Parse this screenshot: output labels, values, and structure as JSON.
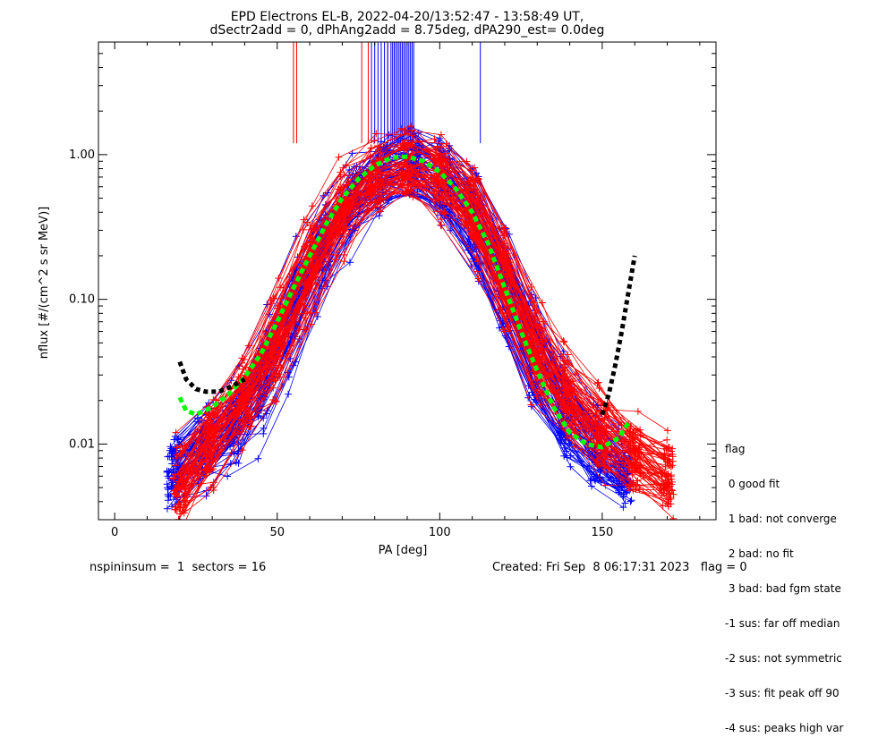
{
  "chart_data": {
    "type": "line",
    "title": "EPD Electrons EL-B, 2022-04-20/13:52:47 - 13:58:49 UT,",
    "subtitle": "dSectr2add = 0, dPhAng2add = 8.75deg, dPA290_est=   0.0deg",
    "xlabel": "PA [deg]",
    "ylabel": "nflux [#/(cm^2 s sr MeV)]",
    "xlim": [
      -5,
      185
    ],
    "ylim": [
      0.003,
      6
    ],
    "yscale": "log",
    "x_ticks": [
      "0",
      "50",
      "100",
      "150"
    ],
    "x_tick_values": [
      0,
      50,
      100,
      150
    ],
    "y_ticks": [
      "0.01",
      "0.10",
      "1.00"
    ],
    "y_tick_values": [
      0.01,
      0.1,
      1.0
    ],
    "grid": false,
    "series": [
      {
        "color": "#0000ff",
        "marker": "+",
        "style": "many thin lines",
        "x": [
          18,
          27,
          40,
          50,
          62,
          72,
          82,
          90,
          100,
          110,
          120,
          130,
          140,
          150,
          157
        ],
        "y": [
          0.006,
          0.01,
          0.015,
          0.05,
          0.2,
          0.48,
          0.75,
          0.95,
          0.7,
          0.4,
          0.12,
          0.035,
          0.014,
          0.008,
          0.006
        ]
      },
      {
        "color": "#ff0000",
        "marker": "+",
        "style": "many thin lines",
        "x": [
          20,
          30,
          45,
          55,
          65,
          75,
          85,
          92,
          100,
          110,
          120,
          130,
          145,
          160,
          170
        ],
        "y": [
          0.005,
          0.012,
          0.03,
          0.1,
          0.3,
          0.6,
          0.85,
          0.92,
          0.72,
          0.45,
          0.15,
          0.04,
          0.015,
          0.008,
          0.006
        ]
      },
      {
        "color": "#00ff00",
        "style": "dashed thick fit",
        "x": [
          20,
          22,
          25,
          30,
          35,
          40,
          45,
          50,
          55,
          60,
          65,
          70,
          75,
          80,
          85,
          90,
          95,
          100,
          105,
          110,
          115,
          120,
          125,
          130,
          135,
          140,
          145,
          150,
          155,
          158
        ],
        "y": [
          0.021,
          0.017,
          0.016,
          0.018,
          0.022,
          0.029,
          0.042,
          0.07,
          0.12,
          0.2,
          0.33,
          0.5,
          0.68,
          0.84,
          0.95,
          0.97,
          0.9,
          0.76,
          0.58,
          0.4,
          0.24,
          0.12,
          0.06,
          0.032,
          0.018,
          0.012,
          0.01,
          0.0095,
          0.011,
          0.014
        ]
      },
      {
        "color": "#000000",
        "style": "dashed thick fit",
        "x": [
          20,
          22,
          25,
          28,
          32,
          36,
          40,
          150,
          152,
          154,
          156,
          158,
          160
        ],
        "y": [
          0.037,
          0.028,
          0.024,
          0.023,
          0.023,
          0.025,
          0.028,
          0.016,
          0.022,
          0.035,
          0.06,
          0.11,
          0.2
        ]
      }
    ],
    "vertical_marks": {
      "color_blue": "#0000ff",
      "color_red": "#ff0000",
      "blue_x": [
        79,
        80,
        81,
        82,
        83,
        84,
        85,
        85.5,
        86,
        86.5,
        87,
        87.5,
        88,
        88.5,
        89,
        89.5,
        90,
        90.5,
        91,
        91.5,
        92,
        112.5
      ],
      "red_x": [
        55,
        56,
        76,
        78,
        84
      ]
    },
    "annotation_left": "nspininsum =  1  sectors = 16",
    "annotation_right": "Created: Fri Sep  8 06:17:31 2023   flag = 0"
  },
  "legend": {
    "title": "flag",
    "items": [
      " 0 good fit",
      " 1 bad: not converge",
      " 2 bad: no fit",
      " 3 bad: bad fgm state",
      "-1 sus: far off median",
      "-2 sus: not symmetric",
      "-3 sus: fit peak off 90",
      "-4 sus: peaks high var"
    ]
  }
}
